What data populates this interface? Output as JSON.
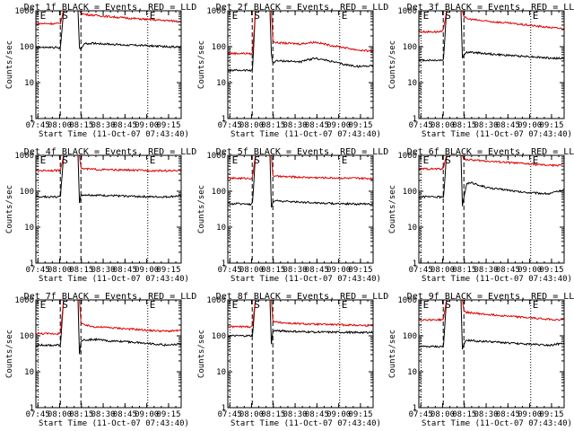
{
  "chart_data": {
    "type": "line",
    "layout": "3x3 grid",
    "shared": {
      "xlabel": "Start Time (11-Oct-07 07:43:40)",
      "ylabel": "Counts/sec",
      "x_tick_labels": [
        "07:45",
        "08:00",
        "08:15",
        "08:30",
        "08:45",
        "09:00",
        "09:15"
      ],
      "x_tick_minutes": [
        1.33,
        16.33,
        31.33,
        46.33,
        61.33,
        76.33,
        91.33
      ],
      "xlim_minutes": [
        0,
        100
      ],
      "y_scale": "log",
      "ylim": [
        1,
        1000
      ],
      "y_tick_labels": [
        "1",
        "10",
        "100",
        "1000"
      ],
      "y_tick_values": [
        1,
        10,
        100,
        1000
      ],
      "markers": [
        {
          "label": "E",
          "minute": 1.6,
          "line": "dotted"
        },
        {
          "label": "S",
          "minute": 16.8,
          "line": "dashed"
        },
        {
          "label": "",
          "minute": 31.0,
          "line": "dashed"
        },
        {
          "label": "E",
          "minute": 77.0,
          "line": "dotted"
        }
      ]
    },
    "colors": {
      "events": "#000000",
      "lld": "#e00000"
    },
    "panels": [
      {
        "title": "Det 1f BLACK = Events, RED = LLD",
        "series": [
          {
            "name": "Events",
            "color": "events",
            "x": [
              0,
              14,
              16,
              17,
              19,
              29,
              30,
              31,
              33,
              40,
              50,
              60,
              70,
              80,
              90,
              100
            ],
            "y": [
              95,
              95,
              90,
              100,
              1000,
              1000,
              95,
              80,
              120,
              125,
              118,
              112,
              110,
              105,
              100,
              98
            ]
          },
          {
            "name": "LLD",
            "color": "lld",
            "x": [
              0,
              14,
              16,
              17,
              19,
              29,
              30,
              31,
              33,
              45,
              60,
              75,
              85,
              95,
              100
            ],
            "y": [
              440,
              440,
              440,
              460,
              1000,
              1000,
              1000,
              900,
              800,
              720,
              640,
              580,
              550,
              520,
              500
            ]
          }
        ]
      },
      {
        "title": "Det 2f BLACK = Events, RED = LLD",
        "series": [
          {
            "name": "Events",
            "color": "events",
            "x": [
              0,
              14,
              16,
              17,
              19,
              29,
              30,
              31,
              33,
              40,
              50,
              60,
              70,
              80,
              90,
              100
            ],
            "y": [
              22,
              22,
              22,
              24,
              1000,
              1000,
              60,
              35,
              40,
              40,
              38,
              48,
              40,
              32,
              28,
              30
            ]
          },
          {
            "name": "LLD",
            "color": "lld",
            "x": [
              0,
              14,
              16,
              17,
              19,
              29,
              30,
              31,
              33,
              40,
              50,
              60,
              70,
              80,
              90,
              100
            ],
            "y": [
              65,
              65,
              62,
              70,
              1000,
              1000,
              1000,
              150,
              130,
              125,
              120,
              135,
              110,
              95,
              80,
              75
            ]
          }
        ]
      },
      {
        "title": "Det 3f BLACK = Events, RED = LLD",
        "series": [
          {
            "name": "Events",
            "color": "events",
            "x": [
              0,
              14,
              16,
              17,
              19,
              29,
              30,
              31,
              33,
              40,
              50,
              60,
              70,
              80,
              90,
              100
            ],
            "y": [
              42,
              42,
              42,
              45,
              1000,
              1000,
              48,
              60,
              70,
              68,
              62,
              58,
              55,
              52,
              48,
              47
            ]
          },
          {
            "name": "LLD",
            "color": "lld",
            "x": [
              0,
              14,
              16,
              17,
              19,
              29,
              30,
              31,
              33,
              45,
              60,
              75,
              85,
              95,
              100
            ],
            "y": [
              260,
              260,
              260,
              300,
              1000,
              1000,
              1000,
              700,
              600,
              520,
              460,
              400,
              360,
              330,
              320
            ]
          }
        ]
      },
      {
        "title": "Det 4f BLACK = Events, RED = LLD",
        "series": [
          {
            "name": "Events",
            "color": "events",
            "x": [
              0,
              14,
              16,
              17,
              19,
              29,
              30,
              31,
              33,
              40,
              50,
              60,
              70,
              80,
              90,
              100
            ],
            "y": [
              70,
              70,
              70,
              75,
              1000,
              1000,
              50,
              75,
              80,
              78,
              76,
              74,
              72,
              70,
              70,
              75
            ]
          },
          {
            "name": "LLD",
            "color": "lld",
            "x": [
              0,
              14,
              16,
              17,
              19,
              29,
              30,
              31,
              33,
              45,
              60,
              75,
              85,
              95,
              100
            ],
            "y": [
              380,
              380,
              380,
              420,
              1000,
              1000,
              1000,
              450,
              420,
              400,
              390,
              380,
              375,
              370,
              370
            ]
          }
        ]
      },
      {
        "title": "Det 5f BLACK = Events, RED = LLD",
        "series": [
          {
            "name": "Events",
            "color": "events",
            "x": [
              0,
              14,
              16,
              17,
              19,
              29,
              30,
              31,
              33,
              40,
              50,
              60,
              70,
              80,
              90,
              100
            ],
            "y": [
              45,
              45,
              42,
              48,
              1000,
              1000,
              35,
              48,
              55,
              52,
              50,
              48,
              46,
              45,
              44,
              45
            ]
          },
          {
            "name": "LLD",
            "color": "lld",
            "x": [
              0,
              14,
              16,
              17,
              19,
              29,
              30,
              31,
              33,
              45,
              60,
              75,
              85,
              95,
              100
            ],
            "y": [
              230,
              230,
              230,
              250,
              1000,
              1000,
              1000,
              280,
              260,
              250,
              240,
              235,
              230,
              228,
              226
            ]
          }
        ]
      },
      {
        "title": "Det 6f BLACK = Events, RED = LLD",
        "series": [
          {
            "name": "Events",
            "color": "events",
            "x": [
              0,
              14,
              16,
              17,
              19,
              29,
              30,
              31,
              33,
              36,
              40,
              50,
              60,
              70,
              80,
              90,
              100
            ],
            "y": [
              70,
              70,
              68,
              72,
              1000,
              1000,
              40,
              70,
              160,
              180,
              150,
              120,
              110,
              95,
              90,
              85,
              110
            ]
          },
          {
            "name": "LLD",
            "color": "lld",
            "x": [
              0,
              14,
              16,
              17,
              19,
              29,
              30,
              31,
              33,
              45,
              60,
              75,
              85,
              95,
              100
            ],
            "y": [
              420,
              420,
              420,
              460,
              1000,
              1000,
              1000,
              800,
              760,
              700,
              640,
              580,
              540,
              520,
              600
            ]
          }
        ]
      },
      {
        "title": "Det 7f BLACK = Events, RED = LLD",
        "series": [
          {
            "name": "Events",
            "color": "events",
            "x": [
              0,
              14,
              16,
              17,
              19,
              29,
              30,
              31,
              33,
              40,
              50,
              60,
              70,
              80,
              90,
              100
            ],
            "y": [
              55,
              55,
              55,
              58,
              1000,
              1000,
              30,
              65,
              75,
              80,
              72,
              70,
              65,
              60,
              55,
              60
            ]
          },
          {
            "name": "LLD",
            "color": "lld",
            "x": [
              0,
              14,
              16,
              17,
              19,
              29,
              30,
              31,
              33,
              40,
              50,
              60,
              70,
              80,
              90,
              100
            ],
            "y": [
              115,
              115,
              115,
              120,
              1000,
              1000,
              1000,
              240,
              200,
              180,
              170,
              160,
              150,
              140,
              135,
              140
            ]
          }
        ]
      },
      {
        "title": "Det 8f BLACK = Events, RED = LLD",
        "series": [
          {
            "name": "Events",
            "color": "events",
            "x": [
              0,
              14,
              16,
              17,
              19,
              29,
              30,
              31,
              33,
              40,
              50,
              60,
              70,
              80,
              90,
              100
            ],
            "y": [
              100,
              100,
              100,
              105,
              1000,
              1000,
              60,
              130,
              140,
              135,
              130,
              128,
              126,
              125,
              124,
              125
            ]
          },
          {
            "name": "LLD",
            "color": "lld",
            "x": [
              0,
              14,
              16,
              17,
              19,
              29,
              30,
              31,
              33,
              45,
              60,
              75,
              85,
              95,
              100
            ],
            "y": [
              180,
              180,
              180,
              200,
              1000,
              1000,
              1000,
              270,
              240,
              220,
              210,
              205,
              200,
              195,
              195
            ]
          }
        ]
      },
      {
        "title": "Det 9f BLACK = Events, RED = LLD",
        "series": [
          {
            "name": "Events",
            "color": "events",
            "x": [
              0,
              14,
              16,
              17,
              19,
              29,
              30,
              31,
              33,
              40,
              50,
              60,
              70,
              80,
              90,
              100
            ],
            "y": [
              50,
              50,
              50,
              55,
              1000,
              1000,
              40,
              60,
              75,
              72,
              68,
              64,
              60,
              58,
              55,
              62
            ]
          },
          {
            "name": "LLD",
            "color": "lld",
            "x": [
              0,
              14,
              16,
              17,
              19,
              29,
              30,
              31,
              33,
              45,
              60,
              75,
              85,
              95,
              100
            ],
            "y": [
              280,
              280,
              280,
              300,
              1000,
              1000,
              1000,
              500,
              450,
              400,
              360,
              320,
              300,
              280,
              285
            ]
          }
        ]
      }
    ]
  }
}
